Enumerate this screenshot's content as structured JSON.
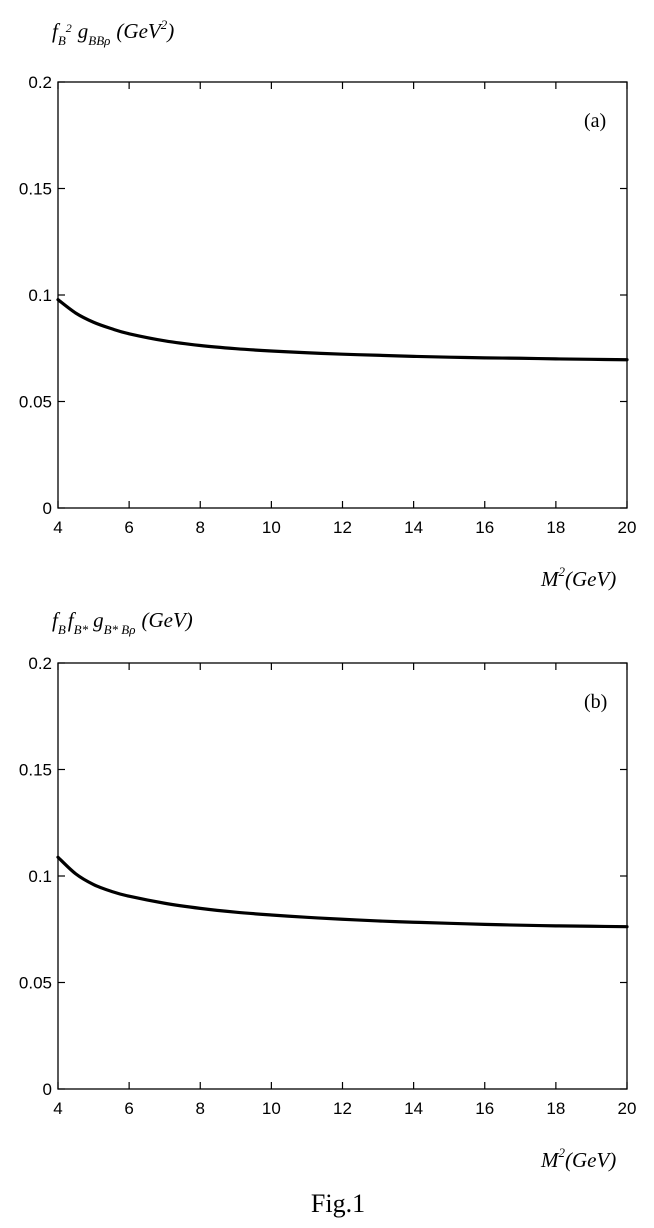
{
  "chart_data": [
    {
      "type": "line",
      "panel_label": "(a)",
      "ylabel": {
        "f": "f",
        "f_sub": "B",
        "f_sup": "2",
        "g": "g",
        "g_sub": "BBρ",
        "unit_pre": "(GeV",
        "unit_sup": "2",
        "unit_post": ")"
      },
      "xlabel": {
        "base": "M",
        "sup": "2",
        "unit": "(GeV)"
      },
      "xlim": [
        4,
        20
      ],
      "ylim": [
        0,
        0.2
      ],
      "xticks": [
        "4",
        "6",
        "8",
        "10",
        "12",
        "14",
        "16",
        "18",
        "20"
      ],
      "yticks": [
        "0",
        "0.05",
        "0.1",
        "0.15",
        "0.2"
      ],
      "grid": false,
      "series": [
        {
          "x": [
            4,
            4.5,
            5,
            5.5,
            6,
            7,
            8,
            9,
            10,
            11,
            12,
            13,
            14,
            15,
            16,
            17,
            18,
            19,
            20
          ],
          "y": [
            0.0978,
            0.0915,
            0.0872,
            0.0842,
            0.0818,
            0.0785,
            0.0763,
            0.0748,
            0.0737,
            0.0729,
            0.0722,
            0.0717,
            0.0712,
            0.0708,
            0.0705,
            0.0703,
            0.07,
            0.0698,
            0.0696
          ]
        }
      ]
    },
    {
      "type": "line",
      "panel_label": "(b)",
      "ylabel": {
        "f1": "f",
        "f1_sub": "B",
        "f2": "f",
        "f2_sub": "B*",
        "g": "g",
        "g_sub": "B* Bρ",
        "unit": "(GeV)"
      },
      "xlabel": {
        "base": "M",
        "sup": "2",
        "unit": "(GeV)"
      },
      "xlim": [
        4,
        20
      ],
      "ylim": [
        0,
        0.2
      ],
      "xticks": [
        "4",
        "6",
        "8",
        "10",
        "12",
        "14",
        "16",
        "18",
        "20"
      ],
      "yticks": [
        "0",
        "0.05",
        "0.1",
        "0.15",
        "0.2"
      ],
      "grid": false,
      "series": [
        {
          "x": [
            4,
            4.5,
            5,
            5.5,
            6,
            7,
            8,
            9,
            10,
            11,
            12,
            13,
            14,
            15,
            16,
            17,
            18,
            19,
            20
          ],
          "y": [
            0.1088,
            0.101,
            0.096,
            0.0928,
            0.0905,
            0.0872,
            0.0848,
            0.083,
            0.0817,
            0.0806,
            0.0797,
            0.0789,
            0.0783,
            0.0778,
            0.0773,
            0.0769,
            0.0766,
            0.0764,
            0.0762
          ]
        }
      ]
    }
  ],
  "caption": "Fig.1"
}
